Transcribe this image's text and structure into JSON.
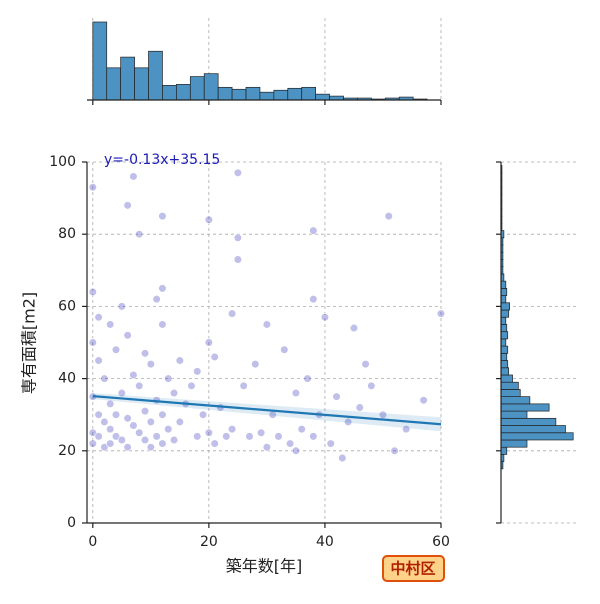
{
  "chart_data": {
    "type": "scatter",
    "annotation": "y=-0.13x+35.15",
    "xlabel": "築年数[年]",
    "ylabel": "専有面積[m2]",
    "badge": "中村区",
    "xlim": [
      -1,
      60
    ],
    "ylim": [
      0,
      100
    ],
    "xticks": [
      0,
      20,
      40,
      60
    ],
    "yticks": [
      0,
      20,
      40,
      60,
      80,
      100
    ],
    "grid": true,
    "point_color": "#2a2ab8",
    "hist_color": "#4c92c3",
    "line_color": "#1f77b4",
    "regression": {
      "slope": -0.13,
      "intercept": 35.15
    },
    "x": [
      0,
      0,
      0,
      0,
      0,
      0,
      1,
      1,
      1,
      1,
      2,
      2,
      2,
      3,
      3,
      3,
      3,
      4,
      4,
      4,
      5,
      5,
      5,
      6,
      6,
      6,
      7,
      7,
      7,
      8,
      8,
      8,
      9,
      9,
      9,
      10,
      10,
      10,
      11,
      11,
      11,
      12,
      12,
      12,
      12,
      13,
      13,
      14,
      14,
      15,
      15,
      16,
      17,
      18,
      18,
      19,
      20,
      20,
      21,
      21,
      22,
      23,
      24,
      24,
      25,
      25,
      26,
      27,
      28,
      29,
      30,
      30,
      31,
      32,
      33,
      34,
      35,
      35,
      36,
      37,
      38,
      38,
      39,
      40,
      41,
      42,
      43,
      44,
      45,
      46,
      47,
      48,
      50,
      51,
      52,
      54,
      57,
      60,
      25,
      12,
      6,
      20,
      38
    ],
    "y": [
      93,
      64,
      50,
      35,
      25,
      22,
      45,
      30,
      24,
      57,
      40,
      28,
      21,
      55,
      33,
      26,
      22,
      48,
      30,
      24,
      60,
      36,
      23,
      52,
      29,
      21,
      41,
      27,
      96,
      38,
      25,
      80,
      47,
      31,
      23,
      44,
      28,
      21,
      62,
      34,
      24,
      85,
      55,
      30,
      22,
      40,
      26,
      36,
      23,
      45,
      28,
      33,
      38,
      42,
      24,
      30,
      84,
      25,
      46,
      22,
      32,
      24,
      58,
      26,
      97,
      79,
      38,
      24,
      44,
      25,
      55,
      21,
      30,
      24,
      48,
      22,
      36,
      20,
      26,
      40,
      62,
      24,
      30,
      57,
      22,
      35,
      18,
      28,
      54,
      32,
      44,
      38,
      30,
      85,
      20,
      26,
      34,
      58,
      73,
      65,
      88,
      50,
      81
    ]
  },
  "x_hist": {
    "bins": [
      0,
      2.4,
      4.8,
      7.2,
      9.6,
      12,
      14.4,
      16.8,
      19.2,
      21.6,
      24,
      26.4,
      28.8,
      31.2,
      33.6,
      36,
      38.4,
      40.8,
      43.2,
      45.6,
      48,
      50.4,
      52.8,
      55.2,
      57.6,
      60
    ],
    "counts": [
      80,
      33,
      44,
      33,
      50,
      15,
      16,
      24,
      27,
      13,
      11,
      13,
      8,
      10,
      12,
      13,
      6,
      4,
      2,
      2,
      1,
      2,
      3,
      1,
      0
    ],
    "lim": [
      0,
      80
    ]
  },
  "y_hist": {
    "bins": [
      15,
      17,
      19,
      21,
      23,
      25,
      27,
      29,
      31,
      33,
      35,
      37,
      39,
      41,
      43,
      45,
      47,
      49,
      51,
      53,
      55,
      57,
      59,
      61,
      63,
      65,
      67,
      69,
      71,
      73,
      75,
      77,
      79,
      81,
      83,
      85,
      87,
      89,
      91,
      93,
      95,
      97,
      99
    ],
    "counts": [
      2,
      3,
      6,
      27,
      75,
      67,
      57,
      27,
      50,
      30,
      20,
      18,
      12,
      8,
      7,
      6,
      7,
      5,
      7,
      6,
      5,
      8,
      9,
      5,
      6,
      5,
      3,
      2,
      2,
      2,
      2,
      2,
      3,
      1,
      1,
      1,
      1,
      1,
      1,
      1,
      1,
      1
    ],
    "lim": [
      0,
      80
    ]
  }
}
